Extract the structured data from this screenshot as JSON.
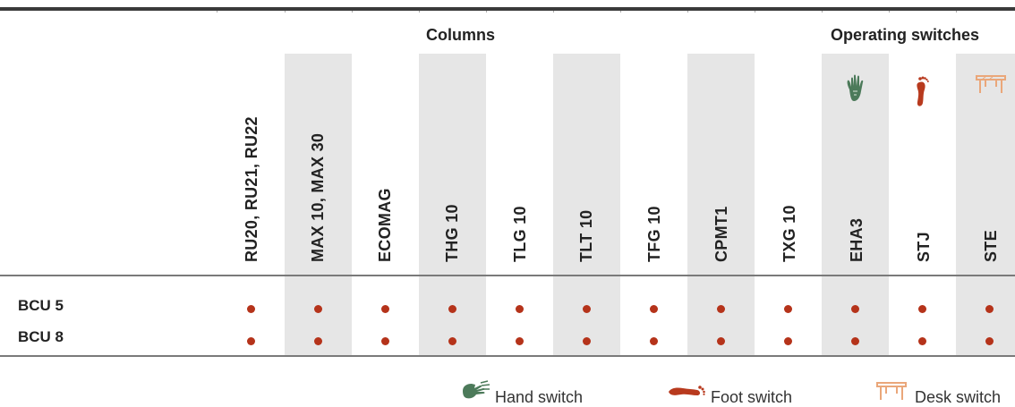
{
  "groups": {
    "columns": "Columns",
    "operating_switches": "Operating switches"
  },
  "columns": [
    {
      "label": "RU20, RU21, RU22",
      "shaded": false
    },
    {
      "label": "MAX 10, MAX 30",
      "shaded": true
    },
    {
      "label": "ECOMAG",
      "shaded": false
    },
    {
      "label": "THG 10",
      "shaded": true
    },
    {
      "label": "TLG 10",
      "shaded": false
    },
    {
      "label": "TLT 10",
      "shaded": true
    },
    {
      "label": "TFG 10",
      "shaded": false
    },
    {
      "label": "CPMT1",
      "shaded": true
    },
    {
      "label": "TXG 10",
      "shaded": false
    },
    {
      "label": "EHA3",
      "shaded": true,
      "icon": "hand-icon"
    },
    {
      "label": "STJ",
      "shaded": false,
      "icon": "foot-icon"
    },
    {
      "label": "STE",
      "shaded": true,
      "icon": "desk-icon"
    }
  ],
  "rows": [
    {
      "label": "BCU 5",
      "compatible": [
        true,
        true,
        true,
        true,
        true,
        true,
        true,
        true,
        true,
        true,
        true,
        true
      ]
    },
    {
      "label": "BCU 8",
      "compatible": [
        true,
        true,
        true,
        true,
        true,
        true,
        true,
        true,
        true,
        true,
        true,
        true
      ]
    }
  ],
  "legend": [
    {
      "icon": "hand-icon",
      "label": "Hand switch"
    },
    {
      "icon": "foot-icon",
      "label": "Foot switch"
    },
    {
      "icon": "desk-icon",
      "label": "Desk switch"
    }
  ],
  "colors": {
    "dot": "#b5331a",
    "hand": "#4c7a5a",
    "foot": "#b83a1e",
    "desk": "#eaa77a",
    "shade": "#e6e6e6"
  }
}
